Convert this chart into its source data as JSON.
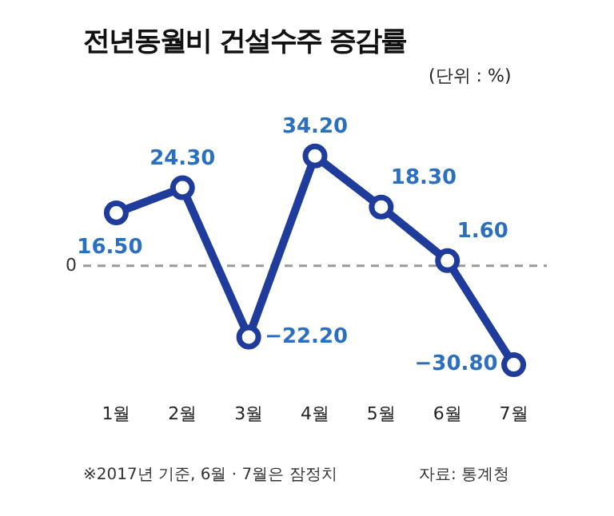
{
  "chart_data": {
    "type": "line",
    "title": "전년동월비 건설수주 증감률",
    "subtitle": "(단위 : %)",
    "categories": [
      "1월",
      "2월",
      "3월",
      "4월",
      "5월",
      "6월",
      "7월"
    ],
    "series": [
      {
        "color": "#1f3c9c",
        "values": [
          16.5,
          24.3,
          -22.2,
          34.2,
          18.3,
          1.6,
          -30.8
        ],
        "value_labels": [
          "16.50",
          "24.30",
          "−22.20",
          "34.20",
          "18.30",
          "1.60",
          "−30.80"
        ]
      }
    ],
    "grid": false,
    "legend": false,
    "marker": "circle",
    "line_style": "solid",
    "ref_lines": [
      {
        "axis": "y",
        "value": 0,
        "label": "0",
        "color": "#9a9a9a",
        "line_style": "dashed"
      }
    ],
    "annotations": [
      "※2017년 기준, 6월 · 7월은 잠정치",
      "자료: 통계청"
    ]
  }
}
